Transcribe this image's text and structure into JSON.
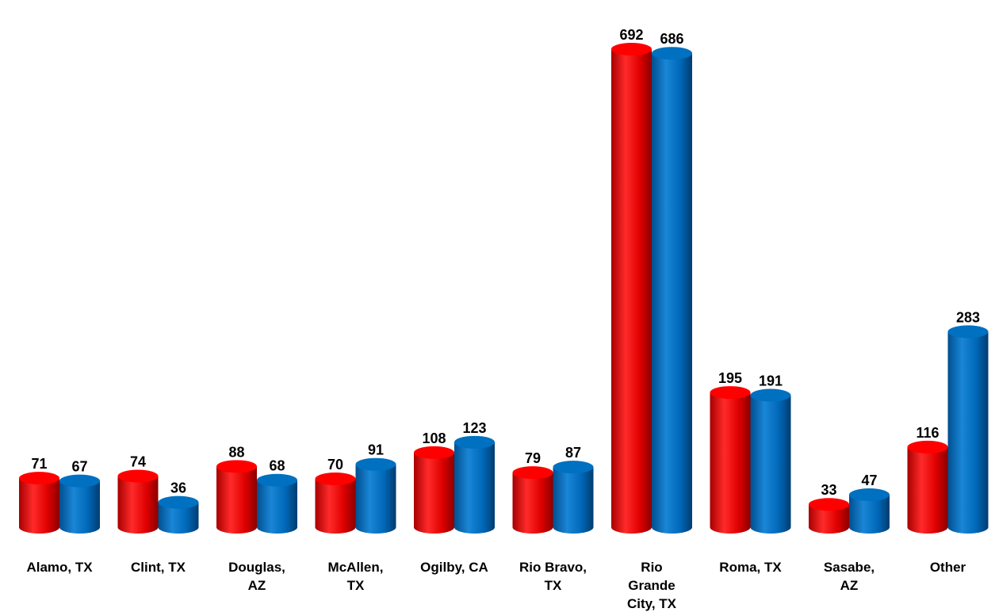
{
  "chart_data": {
    "type": "bar",
    "title": "",
    "xlabel": "",
    "ylabel": "",
    "ylim": [
      0,
      700
    ],
    "grid": false,
    "legend": "none",
    "categories": [
      [
        "Alamo, TX"
      ],
      [
        "Clint, TX"
      ],
      [
        "Douglas,",
        "AZ"
      ],
      [
        "McAllen,",
        "TX"
      ],
      [
        "Ogilby, CA"
      ],
      [
        "Rio Bravo,",
        "TX"
      ],
      [
        "Rio",
        "Grande",
        "City, TX"
      ],
      [
        "Roma, TX"
      ],
      [
        "Sasabe,",
        "AZ"
      ],
      [
        "Other"
      ]
    ],
    "series": [
      {
        "color": "#ff0000",
        "values": [
          71,
          74,
          88,
          70,
          108,
          79,
          692,
          195,
          33,
          116
        ]
      },
      {
        "color": "#0070c0",
        "values": [
          67,
          36,
          68,
          91,
          123,
          87,
          686,
          191,
          47,
          283
        ]
      }
    ]
  }
}
